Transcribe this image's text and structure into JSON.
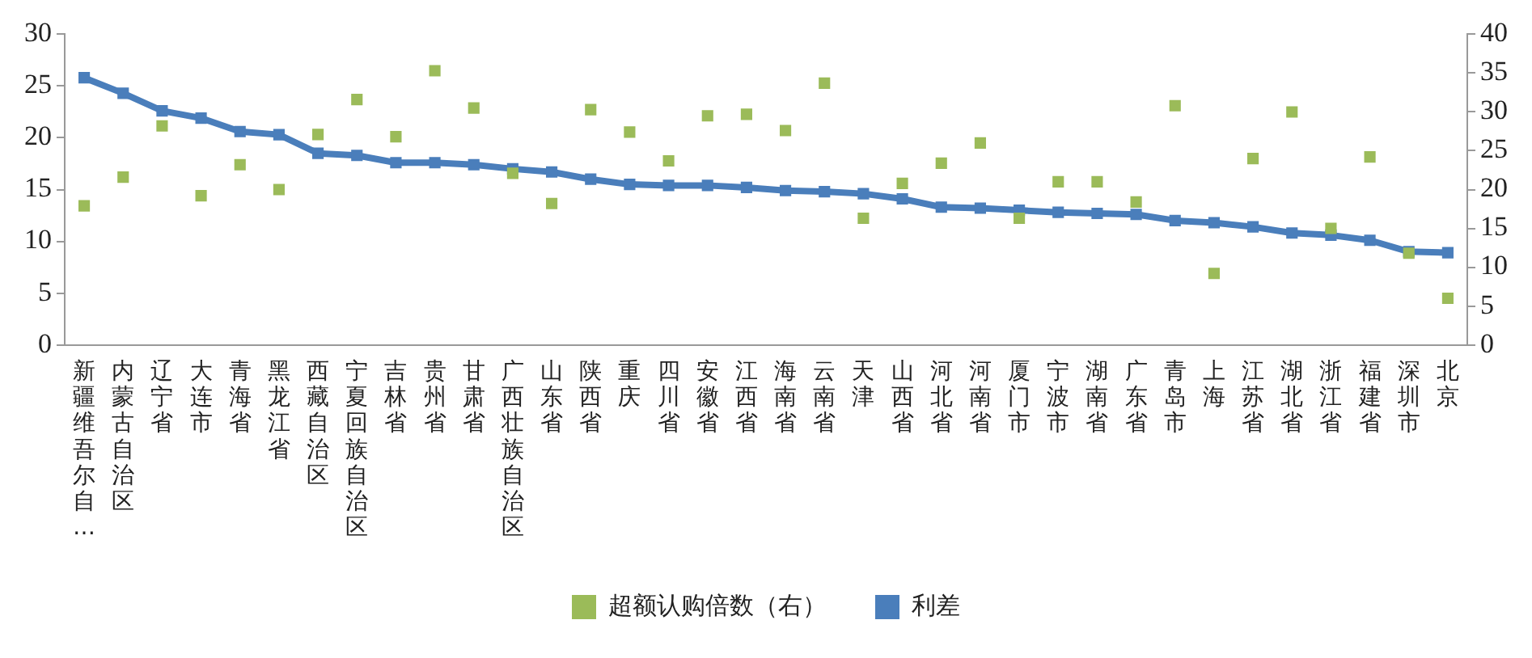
{
  "chart_data": {
    "type": "line",
    "categories": [
      "新疆维吾尔自…",
      "内蒙古自治区",
      "辽宁省",
      "大连市",
      "青海省",
      "黑龙江省",
      "西藏自治区",
      "宁夏回族自治区",
      "吉林省",
      "贵州省",
      "甘肃省",
      "广西壮族自治区",
      "山东省",
      "陕西省",
      "重庆",
      "四川省",
      "安徽省",
      "江西省",
      "海南省",
      "云南省",
      "天津",
      "山西省",
      "河北省",
      "河南省",
      "厦门市",
      "宁波市",
      "湖南省",
      "广东省",
      "青岛市",
      "上海",
      "江苏省",
      "湖北省",
      "浙江省",
      "福建省",
      "深圳市",
      "北京"
    ],
    "series": [
      {
        "name": "利差",
        "color": "#4a7ebb",
        "marker": "square",
        "values": [
          25.8,
          24.3,
          22.6,
          21.9,
          20.6,
          20.3,
          18.5,
          18.3,
          17.6,
          17.6,
          17.4,
          17.0,
          16.7,
          16.0,
          15.5,
          15.4,
          15.4,
          15.2,
          14.9,
          14.8,
          14.6,
          14.1,
          13.3,
          13.2,
          13.0,
          12.8,
          12.7,
          12.6,
          12.0,
          11.8,
          11.4,
          10.8,
          10.6,
          10.1,
          9.0,
          8.9
        ]
      },
      {
        "name": "超额认购倍数（右）",
        "type": "scatter",
        "axis": "y2",
        "color": "#9bbb59",
        "marker": "square",
        "values": [
          17.9,
          21.6,
          28.2,
          19.2,
          23.2,
          20.0,
          27.1,
          31.6,
          26.8,
          35.3,
          30.5,
          22.1,
          18.2,
          30.3,
          27.4,
          23.7,
          29.5,
          29.7,
          27.6,
          33.7,
          16.3,
          20.8,
          23.4,
          26.0,
          16.3,
          21.0,
          21.0,
          18.4,
          30.8,
          9.2,
          24.0,
          30.0,
          15.0,
          24.2,
          11.8,
          6.0
        ]
      }
    ],
    "ylim": [
      0,
      30
    ],
    "yticks": [
      0,
      5,
      10,
      15,
      20,
      25,
      30
    ],
    "y2lim": [
      0,
      40
    ],
    "y2ticks": [
      0,
      5,
      10,
      15,
      20,
      25,
      30,
      35,
      40
    ],
    "grid": false,
    "legend": "bottom"
  }
}
